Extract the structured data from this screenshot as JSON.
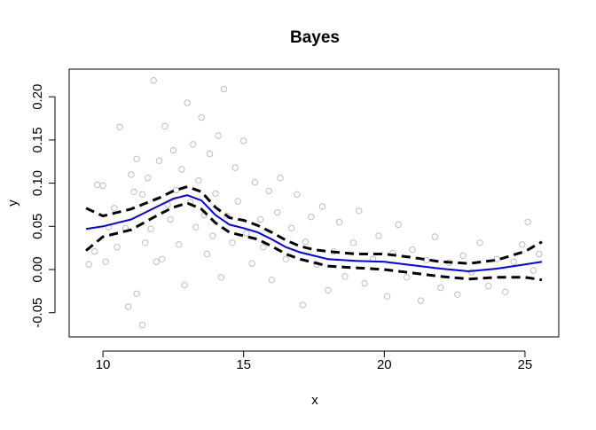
{
  "chart_data": {
    "type": "scatter",
    "title": "Bayes",
    "xlabel": "x",
    "ylabel": "y",
    "xlim": [
      8.8,
      26.2
    ],
    "ylim": [
      -0.078,
      0.232
    ],
    "xticks": [
      10,
      15,
      20,
      25
    ],
    "xtick_labels": [
      "10",
      "15",
      "20",
      "25"
    ],
    "yticks": [
      -0.05,
      0.0,
      0.05,
      0.1,
      0.15,
      0.2
    ],
    "ytick_labels": [
      "-0.05",
      "0.00",
      "0.05",
      "0.10",
      "0.15",
      "0.20"
    ],
    "grid": false,
    "legend": "none",
    "colors": {
      "points": "#bebebe",
      "fit": "#0000ff",
      "band": "#000000"
    },
    "points": [
      [
        9.5,
        0.006
      ],
      [
        9.7,
        0.021
      ],
      [
        9.8,
        0.098
      ],
      [
        10.0,
        0.097
      ],
      [
        10.1,
        0.009
      ],
      [
        10.2,
        0.049
      ],
      [
        10.4,
        0.071
      ],
      [
        10.5,
        0.026
      ],
      [
        10.6,
        0.165
      ],
      [
        10.8,
        0.048
      ],
      [
        10.9,
        -0.043
      ],
      [
        11.0,
        0.11
      ],
      [
        11.1,
        0.09
      ],
      [
        11.2,
        -0.028
      ],
      [
        11.2,
        0.128
      ],
      [
        11.4,
        0.087
      ],
      [
        11.4,
        -0.064
      ],
      [
        11.5,
        0.031
      ],
      [
        11.6,
        0.106
      ],
      [
        11.7,
        0.047
      ],
      [
        11.8,
        0.219
      ],
      [
        11.9,
        0.009
      ],
      [
        12.0,
        0.126
      ],
      [
        12.1,
        0.012
      ],
      [
        12.2,
        0.166
      ],
      [
        12.3,
        0.075
      ],
      [
        12.4,
        0.058
      ],
      [
        12.5,
        0.138
      ],
      [
        12.6,
        0.092
      ],
      [
        12.7,
        0.029
      ],
      [
        12.8,
        0.116
      ],
      [
        12.9,
        -0.018
      ],
      [
        13.0,
        0.193
      ],
      [
        13.1,
        0.078
      ],
      [
        13.2,
        0.145
      ],
      [
        13.3,
        0.049
      ],
      [
        13.4,
        0.103
      ],
      [
        13.5,
        0.176
      ],
      [
        13.6,
        0.063
      ],
      [
        13.7,
        0.018
      ],
      [
        13.8,
        0.134
      ],
      [
        13.9,
        0.039
      ],
      [
        14.0,
        0.088
      ],
      [
        14.1,
        0.155
      ],
      [
        14.2,
        -0.009
      ],
      [
        14.3,
        0.209
      ],
      [
        14.4,
        0.062
      ],
      [
        14.6,
        0.031
      ],
      [
        14.7,
        0.118
      ],
      [
        14.8,
        0.079
      ],
      [
        15.0,
        0.149
      ],
      [
        15.1,
        0.042
      ],
      [
        15.3,
        0.007
      ],
      [
        15.4,
        0.101
      ],
      [
        15.6,
        0.058
      ],
      [
        15.7,
        0.026
      ],
      [
        15.9,
        0.091
      ],
      [
        16.0,
        -0.012
      ],
      [
        16.2,
        0.066
      ],
      [
        16.3,
        0.106
      ],
      [
        16.5,
        0.012
      ],
      [
        16.7,
        0.048
      ],
      [
        16.9,
        0.087
      ],
      [
        17.1,
        -0.041
      ],
      [
        17.2,
        0.032
      ],
      [
        17.4,
        0.061
      ],
      [
        17.6,
        0.006
      ],
      [
        17.8,
        0.073
      ],
      [
        18.0,
        -0.024
      ],
      [
        18.2,
        0.021
      ],
      [
        18.4,
        0.055
      ],
      [
        18.6,
        -0.008
      ],
      [
        18.9,
        0.031
      ],
      [
        19.1,
        0.068
      ],
      [
        19.3,
        -0.016
      ],
      [
        19.6,
        0.012
      ],
      [
        19.8,
        0.039
      ],
      [
        20.1,
        -0.031
      ],
      [
        20.3,
        0.019
      ],
      [
        20.5,
        0.052
      ],
      [
        20.8,
        -0.009
      ],
      [
        21.0,
        0.023
      ],
      [
        21.3,
        -0.036
      ],
      [
        21.5,
        0.011
      ],
      [
        21.8,
        0.038
      ],
      [
        22.0,
        -0.021
      ],
      [
        22.3,
        0.008
      ],
      [
        22.6,
        -0.029
      ],
      [
        22.8,
        0.016
      ],
      [
        23.1,
        -0.003
      ],
      [
        23.4,
        0.031
      ],
      [
        23.7,
        -0.019
      ],
      [
        24.0,
        0.012
      ],
      [
        24.3,
        -0.026
      ],
      [
        24.6,
        0.009
      ],
      [
        24.9,
        0.029
      ],
      [
        25.1,
        0.055
      ],
      [
        25.3,
        -0.001
      ],
      [
        25.5,
        0.018
      ]
    ],
    "fit": {
      "x": [
        9.4,
        10,
        11,
        12,
        12.5,
        13,
        13.5,
        14,
        14.5,
        15,
        15.5,
        16,
        16.5,
        17,
        17.5,
        18,
        19,
        20,
        21,
        22,
        23,
        24,
        25,
        25.6
      ],
      "y": [
        0.047,
        0.05,
        0.058,
        0.074,
        0.082,
        0.086,
        0.08,
        0.063,
        0.052,
        0.048,
        0.043,
        0.035,
        0.026,
        0.02,
        0.016,
        0.012,
        0.01,
        0.009,
        0.005,
        0.001,
        -0.002,
        0.001,
        0.006,
        0.009
      ]
    },
    "upper": {
      "x": [
        9.4,
        10,
        11,
        12,
        12.5,
        13,
        13.5,
        14,
        14.5,
        15,
        15.5,
        16,
        16.5,
        17,
        17.5,
        18,
        19,
        20,
        21,
        22,
        23,
        24,
        25,
        25.6
      ],
      "y": [
        0.071,
        0.062,
        0.07,
        0.083,
        0.091,
        0.096,
        0.09,
        0.072,
        0.06,
        0.057,
        0.051,
        0.043,
        0.034,
        0.027,
        0.023,
        0.021,
        0.018,
        0.018,
        0.014,
        0.009,
        0.007,
        0.011,
        0.021,
        0.032
      ]
    },
    "lower": {
      "x": [
        9.4,
        10,
        11,
        12,
        12.5,
        13,
        13.5,
        14,
        14.5,
        15,
        15.5,
        16,
        16.5,
        17,
        17.5,
        18,
        19,
        20,
        21,
        22,
        23,
        24,
        25,
        25.6
      ],
      "y": [
        0.022,
        0.038,
        0.046,
        0.064,
        0.072,
        0.077,
        0.07,
        0.054,
        0.043,
        0.039,
        0.035,
        0.027,
        0.018,
        0.012,
        0.008,
        0.004,
        0.002,
        0.0,
        -0.004,
        -0.008,
        -0.011,
        -0.009,
        -0.009,
        -0.012
      ]
    }
  }
}
